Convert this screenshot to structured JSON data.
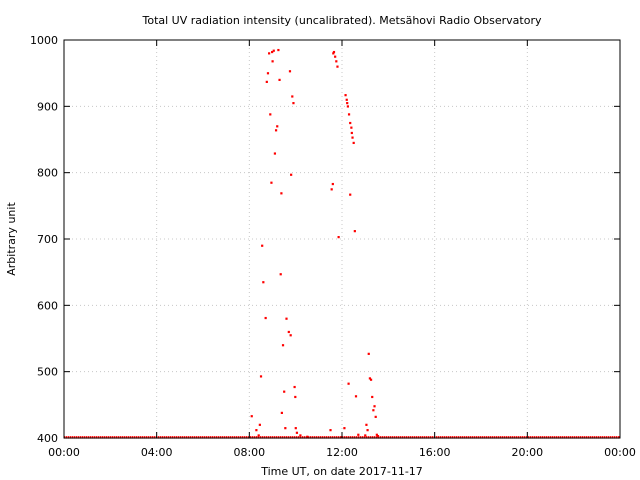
{
  "chart_data": {
    "type": "scatter",
    "title": "Total UV radiation intensity (uncalibrated). Metsähovi Radio Observatory",
    "xlabel": "Time UT, on date 2017-11-17",
    "ylabel": "Arbitrary unit",
    "x_unit": "hours UT",
    "xlim": [
      0,
      24
    ],
    "ylim": [
      400,
      1000
    ],
    "x_ticks": [
      0,
      4,
      8,
      12,
      16,
      20,
      24
    ],
    "x_tick_labels": [
      "00:00",
      "04:00",
      "08:00",
      "12:00",
      "16:00",
      "20:00",
      "00:00"
    ],
    "y_ticks": [
      400,
      500,
      600,
      700,
      800,
      900,
      1000
    ],
    "y_tick_labels": [
      "400",
      "500",
      "600",
      "700",
      "800",
      "900",
      "1000"
    ],
    "grid": true,
    "point_color": "#ff0000",
    "baseline": {
      "y": 401,
      "x_range": [
        0,
        24
      ]
    },
    "points": [
      [
        8.1,
        433
      ],
      [
        8.3,
        412
      ],
      [
        8.4,
        404
      ],
      [
        8.45,
        420
      ],
      [
        8.5,
        493
      ],
      [
        8.55,
        690
      ],
      [
        8.6,
        635
      ],
      [
        8.7,
        581
      ],
      [
        8.75,
        937
      ],
      [
        8.8,
        950
      ],
      [
        8.85,
        980
      ],
      [
        8.9,
        888
      ],
      [
        8.95,
        785
      ],
      [
        8.98,
        982
      ],
      [
        9.0,
        968
      ],
      [
        9.05,
        984
      ],
      [
        9.1,
        829
      ],
      [
        9.15,
        864
      ],
      [
        9.2,
        870
      ],
      [
        9.25,
        985
      ],
      [
        9.3,
        940
      ],
      [
        9.35,
        647
      ],
      [
        9.38,
        769
      ],
      [
        9.4,
        438
      ],
      [
        9.45,
        540
      ],
      [
        9.5,
        470
      ],
      [
        9.55,
        415
      ],
      [
        9.6,
        580
      ],
      [
        9.7,
        560
      ],
      [
        9.75,
        953
      ],
      [
        9.78,
        555
      ],
      [
        9.8,
        797
      ],
      [
        9.85,
        915
      ],
      [
        9.9,
        905
      ],
      [
        9.95,
        477
      ],
      [
        9.98,
        462
      ],
      [
        10.0,
        415
      ],
      [
        10.05,
        408
      ],
      [
        10.2,
        404
      ],
      [
        10.5,
        402
      ],
      [
        11.5,
        412
      ],
      [
        11.55,
        775
      ],
      [
        11.6,
        783
      ],
      [
        11.62,
        980
      ],
      [
        11.65,
        982
      ],
      [
        11.7,
        975
      ],
      [
        11.75,
        968
      ],
      [
        11.8,
        960
      ],
      [
        11.85,
        703
      ],
      [
        12.1,
        415
      ],
      [
        12.15,
        917
      ],
      [
        12.2,
        910
      ],
      [
        12.22,
        905
      ],
      [
        12.25,
        900
      ],
      [
        12.28,
        482
      ],
      [
        12.3,
        888
      ],
      [
        12.35,
        875
      ],
      [
        12.4,
        868
      ],
      [
        12.42,
        860
      ],
      [
        12.45,
        853
      ],
      [
        12.5,
        845
      ],
      [
        12.35,
        767
      ],
      [
        12.55,
        712
      ],
      [
        12.6,
        463
      ],
      [
        12.7,
        405
      ],
      [
        13.0,
        404
      ],
      [
        13.05,
        420
      ],
      [
        13.1,
        412
      ],
      [
        13.15,
        527
      ],
      [
        13.2,
        490
      ],
      [
        13.25,
        488
      ],
      [
        13.3,
        462
      ],
      [
        13.35,
        442
      ],
      [
        13.4,
        448
      ],
      [
        13.45,
        432
      ],
      [
        13.5,
        405
      ],
      [
        13.55,
        403
      ]
    ]
  }
}
